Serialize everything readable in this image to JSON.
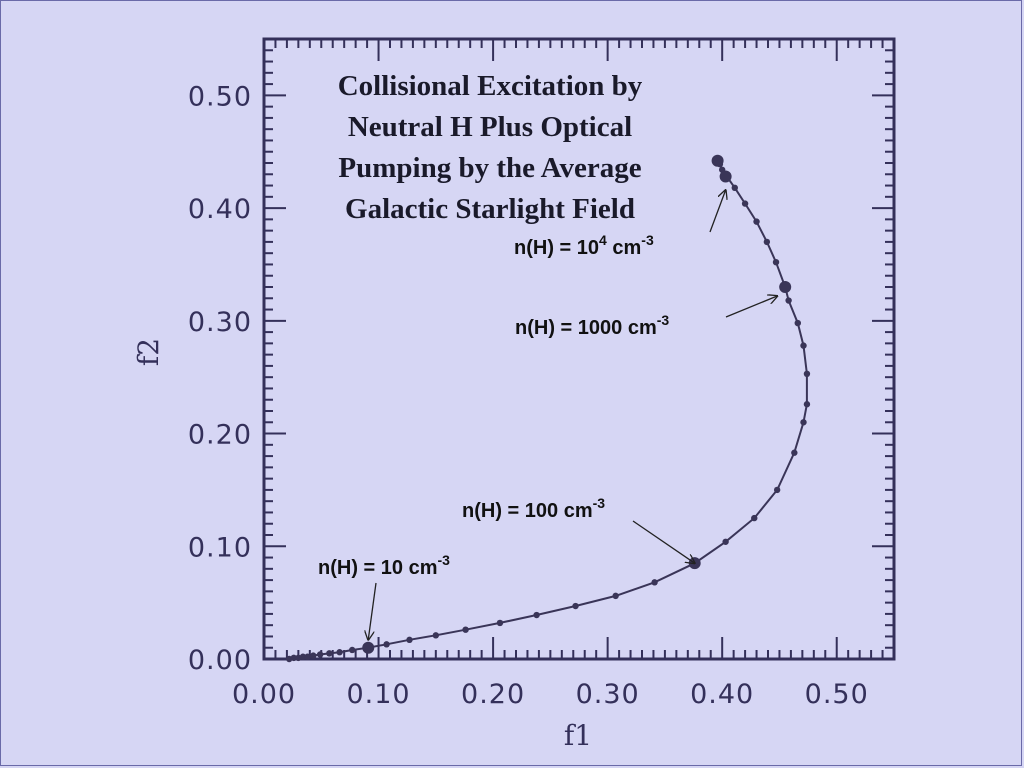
{
  "chart_data": {
    "type": "scatter",
    "xlabel": "f1",
    "ylabel": "f2",
    "xlim": [
      0.0,
      0.55
    ],
    "ylim": [
      0.0,
      0.55
    ],
    "x_ticks": [
      0.0,
      0.1,
      0.2,
      0.3,
      0.4,
      0.5
    ],
    "y_ticks": [
      0.0,
      0.1,
      0.2,
      0.3,
      0.4,
      0.5
    ],
    "x_tick_labels": [
      "0.00",
      "0.10",
      "0.20",
      "0.30",
      "0.40",
      "0.50"
    ],
    "y_tick_labels": [
      "0.00",
      "0.10",
      "0.20",
      "0.30",
      "0.40",
      "0.50"
    ],
    "title_lines": [
      "Collisional Excitation by",
      "Neutral H Plus Optical",
      "Pumping by the Average",
      "Galactic Starlight Field"
    ],
    "x": [
      0.022,
      0.026,
      0.03,
      0.034,
      0.038,
      0.043,
      0.049,
      0.057,
      0.066,
      0.077,
      0.091,
      0.107,
      0.127,
      0.15,
      0.176,
      0.206,
      0.238,
      0.272,
      0.307,
      0.341,
      0.376,
      0.403,
      0.428,
      0.448,
      0.463,
      0.471,
      0.474,
      0.474,
      0.471,
      0.466,
      0.458,
      0.455,
      0.447,
      0.439,
      0.43,
      0.42,
      0.411,
      0.404,
      0.4,
      0.398,
      0.396
    ],
    "y": [
      0.0,
      0.001,
      0.001,
      0.002,
      0.002,
      0.003,
      0.004,
      0.005,
      0.006,
      0.008,
      0.01,
      0.013,
      0.017,
      0.021,
      0.026,
      0.032,
      0.039,
      0.047,
      0.056,
      0.068,
      0.085,
      0.104,
      0.125,
      0.15,
      0.183,
      0.21,
      0.226,
      0.253,
      0.278,
      0.298,
      0.318,
      0.33,
      0.352,
      0.37,
      0.388,
      0.404,
      0.418,
      0.428,
      0.434,
      0.439,
      0.442
    ],
    "highlighted_points": [
      {
        "x": 0.091,
        "y": 0.01
      },
      {
        "x": 0.376,
        "y": 0.085
      },
      {
        "x": 0.455,
        "y": 0.33
      },
      {
        "x": 0.403,
        "y": 0.428
      },
      {
        "x": 0.396,
        "y": 0.442
      }
    ],
    "annotations": [
      {
        "text": "n(H) = 10 cm",
        "sup": "-3",
        "sup2": "",
        "tail": "",
        "target": {
          "x": 0.091,
          "y": 0.01
        }
      },
      {
        "text": "n(H) = 100 cm",
        "sup": "-3",
        "sup2": "",
        "tail": "",
        "target": {
          "x": 0.376,
          "y": 0.085
        }
      },
      {
        "text": "n(H) = 1000 cm",
        "sup": "-3",
        "sup2": "",
        "tail": "",
        "target": {
          "x": 0.448,
          "y": 0.322
        }
      },
      {
        "text": "n(H) = 10",
        "sup": "4",
        "sup2": "-3",
        "tail": " cm",
        "target": {
          "x": 0.403,
          "y": 0.423
        }
      }
    ],
    "grid": false,
    "legend": "none",
    "colors": {
      "background": "#d6d6f4",
      "axes": "#34305a",
      "series": "#3a3558"
    }
  }
}
